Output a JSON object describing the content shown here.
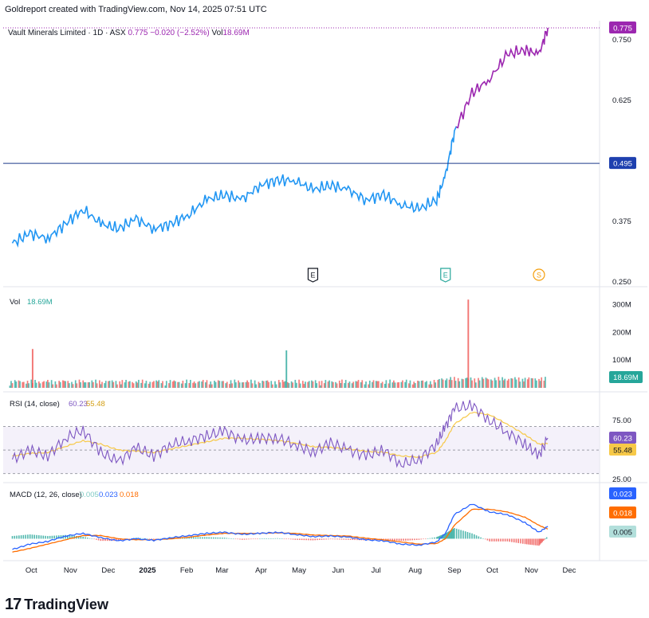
{
  "header": {
    "text": "Goldreport created with TradingView.com, Nov 14, 2025 07:51 UTC"
  },
  "legend": {
    "symbol": "Vault Minerals Limited · 1D · ASX",
    "price": "0.775",
    "change": "−0.020 (−2.52%)",
    "vol_label": "Vol",
    "vol_value": "18.69M"
  },
  "footer": {
    "logo_text": "TradingView",
    "logo_mark": "17"
  },
  "colors": {
    "price_blue": "#2196f3",
    "price_purple": "#9c27b0",
    "vol_up": "#26a69a",
    "vol_down": "#ef5350",
    "rsi_line": "#7e57c2",
    "rsi_ma": "#f7c948",
    "macd_line": "#2962ff",
    "signal_line": "#ff6d00",
    "hline": "#1e3a8a"
  },
  "chart_data": [
    {
      "type": "line",
      "pane": "price",
      "title": "Vault Minerals Limited · 1D · ASX",
      "y_ticks": [
        "0.750",
        "0.625",
        "0.495",
        "0.375",
        "0.250"
      ],
      "ylim": [
        0.25,
        0.78
      ],
      "x_ticks": [
        "Oct",
        "Nov",
        "Dec",
        "2025",
        "Feb",
        "Mar",
        "Apr",
        "May",
        "Jun",
        "Jul",
        "Aug",
        "Sep",
        "Oct",
        "Nov",
        "Dec"
      ],
      "series": [
        {
          "name": "Vault Minerals Limited",
          "x": [
            "2024-09-16",
            "2024-09-30",
            "2024-10-14",
            "2024-10-28",
            "2024-11-11",
            "2024-11-25",
            "2024-12-09",
            "2024-12-23",
            "2025-01-06",
            "2025-01-20",
            "2025-02-03",
            "2025-02-17",
            "2025-03-03",
            "2025-03-17",
            "2025-03-31",
            "2025-04-14",
            "2025-04-28",
            "2025-05-12",
            "2025-05-26",
            "2025-06-09",
            "2025-06-23",
            "2025-07-07",
            "2025-07-21",
            "2025-08-04",
            "2025-08-18",
            "2025-08-25",
            "2025-09-01",
            "2025-09-15",
            "2025-09-29",
            "2025-10-13",
            "2025-10-27",
            "2025-11-07",
            "2025-11-14"
          ],
          "values": [
            0.33,
            0.35,
            0.34,
            0.37,
            0.4,
            0.37,
            0.36,
            0.38,
            0.36,
            0.37,
            0.39,
            0.42,
            0.43,
            0.42,
            0.45,
            0.46,
            0.46,
            0.44,
            0.45,
            0.44,
            0.42,
            0.43,
            0.41,
            0.4,
            0.42,
            0.47,
            0.56,
            0.64,
            0.67,
            0.72,
            0.73,
            0.72,
            0.775
          ]
        }
      ],
      "hline": 0.495,
      "hline_label": "0.495",
      "last_label": "0.775",
      "markers": [
        {
          "label": "E",
          "x": "2025-05-12"
        },
        {
          "label": "E",
          "x": "2025-08-25"
        },
        {
          "label": "S",
          "x": "2025-11-07"
        }
      ]
    },
    {
      "type": "bar",
      "pane": "volume",
      "title": "Vol",
      "value_label": "18.69M",
      "y_ticks": [
        "300M",
        "200M",
        "100M"
      ],
      "ylim": [
        0,
        330
      ],
      "unit": "M",
      "spikes": [
        {
          "x": "2024-10-02",
          "value": 140
        },
        {
          "x": "2025-04-21",
          "value": 135
        },
        {
          "x": "2025-09-12",
          "value": 318
        }
      ]
    },
    {
      "type": "line",
      "pane": "rsi",
      "title": "RSI (14, close)",
      "rsi_value": "60.23",
      "ma_value": "55.48",
      "y_ticks": [
        "75.00",
        "25.00"
      ],
      "ylim": [
        25,
        90
      ],
      "bands": [
        30,
        70
      ],
      "series": [
        {
          "name": "RSI",
          "values": [
            42,
            50,
            45,
            60,
            67,
            48,
            40,
            52,
            45,
            55,
            58,
            62,
            66,
            58,
            60,
            60,
            55,
            48,
            56,
            50,
            45,
            50,
            38,
            42,
            55,
            70,
            85,
            88,
            75,
            65,
            55,
            45,
            60.23
          ]
        },
        {
          "name": "RSI MA",
          "values": [
            45,
            47,
            48,
            53,
            58,
            55,
            50,
            49,
            48,
            51,
            54,
            57,
            60,
            60,
            59,
            58,
            56,
            53,
            52,
            51,
            49,
            48,
            45,
            44,
            48,
            58,
            72,
            82,
            80,
            72,
            63,
            55,
            55.48
          ]
        }
      ]
    },
    {
      "type": "line",
      "pane": "macd",
      "title": "MACD (12, 26, close)",
      "hist_value": "0.005",
      "macd_value": "0.023",
      "signal_value": "0.018",
      "series": [
        {
          "name": "MACD",
          "values": [
            -0.02,
            -0.01,
            -0.005,
            0.005,
            0.01,
            0.002,
            -0.004,
            0.0,
            -0.003,
            0.002,
            0.006,
            0.01,
            0.012,
            0.008,
            0.01,
            0.012,
            0.008,
            0.004,
            0.005,
            0.003,
            -0.002,
            -0.004,
            -0.01,
            -0.012,
            -0.006,
            0.01,
            0.045,
            0.065,
            0.05,
            0.045,
            0.03,
            0.012,
            0.023
          ]
        },
        {
          "name": "Signal",
          "values": [
            -0.025,
            -0.018,
            -0.01,
            -0.002,
            0.006,
            0.006,
            0.0,
            -0.002,
            -0.002,
            0.0,
            0.003,
            0.007,
            0.01,
            0.01,
            0.01,
            0.011,
            0.01,
            0.007,
            0.006,
            0.005,
            0.001,
            -0.002,
            -0.006,
            -0.01,
            -0.009,
            0.0,
            0.025,
            0.055,
            0.055,
            0.05,
            0.04,
            0.025,
            0.018
          ]
        }
      ]
    }
  ]
}
